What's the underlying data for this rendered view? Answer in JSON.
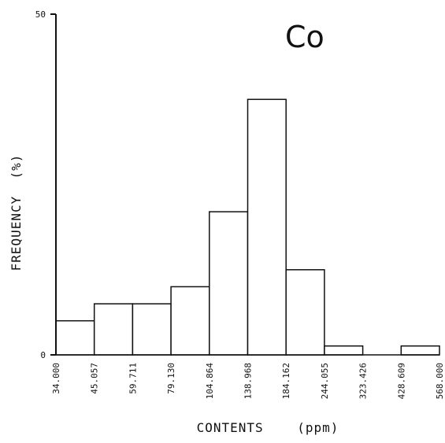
{
  "chart_data": {
    "type": "bar",
    "title": "Co",
    "xlabel": "CONTENTS    (ppm)",
    "ylabel": "FREQUENCY  (%)",
    "ylim": [
      0,
      50
    ],
    "y_ticks": [
      "0",
      "50"
    ],
    "bin_edges": [
      "34.000",
      "45.057",
      "59.711",
      "79.130",
      "104.864",
      "138.968",
      "184.162",
      "244.055",
      "323.426",
      "428.609",
      "568.000"
    ],
    "values": [
      5,
      7.5,
      7.5,
      10,
      21,
      37.5,
      12.5,
      1.3,
      0,
      1.3
    ],
    "grid": false,
    "legend": "none"
  }
}
